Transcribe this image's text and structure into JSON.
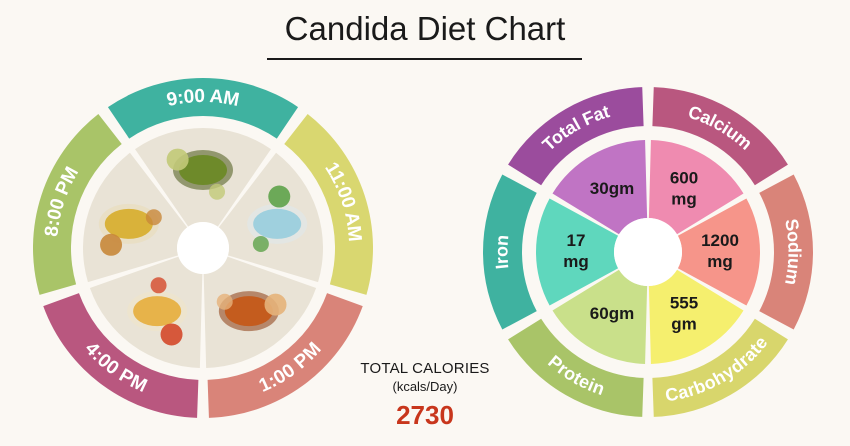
{
  "title": "Candida Diet Chart",
  "meals": [
    {
      "time": "9:00 AM",
      "color": "#3fb2a0",
      "image": "green-tea-icon"
    },
    {
      "time": "11:00 AM",
      "color": "#d9d770",
      "image": "coconut-water-icon"
    },
    {
      "time": "1:00 PM",
      "color": "#d98479",
      "image": "curry-roti-icon"
    },
    {
      "time": "4:00 PM",
      "color": "#b9577f",
      "image": "soup-bowl-icon"
    },
    {
      "time": "8:00 PM",
      "color": "#a9c468",
      "image": "rice-roti-icon"
    }
  ],
  "nutrients": [
    {
      "name": "Calcium",
      "value": "600 mg",
      "color": "#b9577f",
      "fill": "#ef8bb0"
    },
    {
      "name": "Sodium",
      "value": "1200 mg",
      "color": "#d98479",
      "fill": "#f6958a"
    },
    {
      "name": "Carbohydrate",
      "value": "555 gm",
      "color": "#d8d66c",
      "fill": "#f5ef6e"
    },
    {
      "name": "Protein",
      "value": "60gm",
      "color": "#a9c468",
      "fill": "#c9e08a"
    },
    {
      "name": "Iron",
      "value": "17 mg",
      "color": "#3fb2a0",
      "fill": "#5fd7bd"
    },
    {
      "name": "Total Fat",
      "value": "30gm",
      "color": "#9b4c9d",
      "fill": "#c074c4"
    }
  ],
  "total": {
    "label": "TOTAL CALORIES",
    "unit": "(kcals/Day)",
    "value": "2730"
  }
}
